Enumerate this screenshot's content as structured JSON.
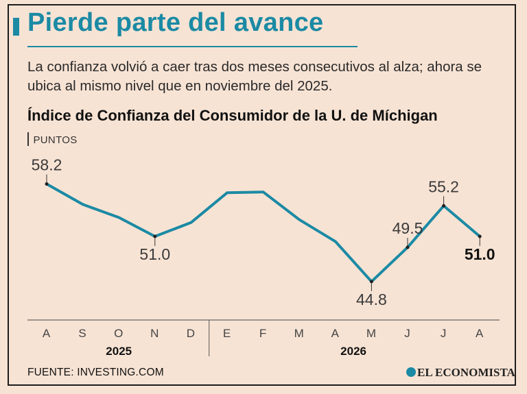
{
  "header": {
    "title": "Pierde parte del avance",
    "subtitle": "La confianza volvió a caer tras dos meses consecutivos al alza; ahora se ubica al mismo nivel que en noviembre del 2025."
  },
  "chart_data": {
    "type": "line",
    "title": "Índice de Confianza del Consumidor de la U. de Míchigan",
    "units": "PUNTOS",
    "categories": [
      "A",
      "S",
      "O",
      "N",
      "D",
      "E",
      "F",
      "M",
      "A",
      "M",
      "J",
      "J",
      "A"
    ],
    "years": [
      {
        "label": "2025",
        "months": [
          "A",
          "S",
          "O",
          "N",
          "D"
        ]
      },
      {
        "label": "2026",
        "months": [
          "E",
          "F",
          "M",
          "A",
          "M",
          "J",
          "J",
          "A"
        ]
      }
    ],
    "series": [
      {
        "values": [
          58.2,
          55.4,
          53.6,
          51.0,
          52.9,
          57.0,
          57.1,
          53.3,
          50.3,
          44.8,
          49.5,
          55.2,
          51.0
        ]
      }
    ],
    "data_labels": [
      {
        "index": 0,
        "text": "58.2",
        "position": "above",
        "bold": false
      },
      {
        "index": 3,
        "text": "51.0",
        "position": "below",
        "bold": false
      },
      {
        "index": 9,
        "text": "44.8",
        "position": "below",
        "bold": false
      },
      {
        "index": 10,
        "text": "49.5",
        "position": "above",
        "bold": false
      },
      {
        "index": 11,
        "text": "55.2",
        "position": "above",
        "bold": false
      },
      {
        "index": 12,
        "text": "51.0",
        "position": "below",
        "bold": true
      }
    ],
    "ylim": [
      43,
      59
    ],
    "grid": false,
    "line_color": "#1b8aa4"
  },
  "footer": {
    "source": "FUENTE: INVESTING.COM",
    "brand": "EL ECONOMISTA"
  }
}
